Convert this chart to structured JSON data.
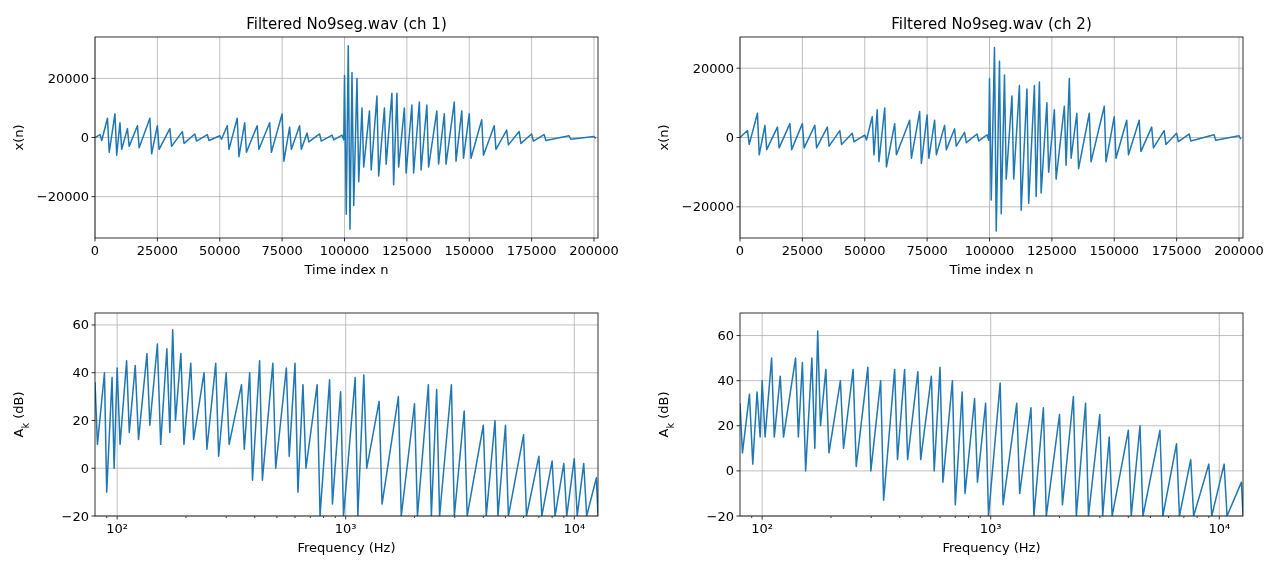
{
  "chart_data": [
    {
      "type": "line",
      "title": "Filtered No9seg.wav (ch 1)",
      "xlabel": "Time index n",
      "ylabel": "x(n)",
      "xlim": [
        0,
        201600
      ],
      "ylim": [
        -34000,
        34000
      ],
      "xticks": [
        0,
        25000,
        50000,
        75000,
        100000,
        125000,
        150000,
        175000,
        200000
      ],
      "yticks": [
        -20000,
        0,
        20000
      ],
      "grid": true,
      "series": [
        {
          "color": "#1f77b4",
          "x": [
            0,
            2000,
            2700,
            5000,
            5700,
            8000,
            8700,
            10000,
            10700,
            13000,
            13700,
            17000,
            17700,
            22000,
            22700,
            25000,
            25700,
            30000,
            30700,
            35000,
            35700,
            40000,
            40700,
            45000,
            45700,
            50000,
            50700,
            53000,
            53700,
            57000,
            57700,
            60000,
            60700,
            65000,
            65700,
            70000,
            70700,
            75000,
            75700,
            78000,
            78700,
            82000,
            82700,
            85000,
            85700,
            90000,
            90700,
            95000,
            95700,
            99000,
            99700,
            100000,
            100700,
            101500,
            102200,
            103000,
            103700,
            105000,
            105700,
            107000,
            107700,
            110000,
            110700,
            113000,
            113700,
            116000,
            116700,
            119000,
            119700,
            121000,
            121700,
            124000,
            124700,
            127000,
            127700,
            130000,
            130700,
            133000,
            133700,
            137000,
            137700,
            140000,
            140700,
            144000,
            144700,
            147000,
            147700,
            150000,
            150700,
            155000,
            155700,
            160000,
            160700,
            165000,
            165700,
            170000,
            170700,
            175000,
            175700,
            180000,
            180700,
            190000,
            190700,
            200000,
            200700
          ],
          "values": [
            0,
            1000,
            -1000,
            6500,
            -5000,
            8000,
            -6000,
            5000,
            -4000,
            3000,
            -3000,
            4000,
            -3500,
            6500,
            -5500,
            4000,
            -4000,
            3000,
            -3000,
            2000,
            -2000,
            1200,
            -1200,
            1000,
            -1000,
            600,
            -600,
            4000,
            -4000,
            6500,
            -6500,
            5000,
            -5000,
            4000,
            -4000,
            5000,
            -5000,
            8000,
            -8000,
            3500,
            -4000,
            4000,
            -4000,
            1500,
            -1500,
            1200,
            -1200,
            800,
            -800,
            800,
            -800,
            21000,
            -26000,
            31000,
            -31000,
            22000,
            -23000,
            20000,
            -15000,
            10000,
            -10000,
            9000,
            -11000,
            14000,
            -13000,
            10000,
            -9000,
            15000,
            -16000,
            15000,
            -10000,
            10000,
            -12000,
            11000,
            -12000,
            12000,
            -11000,
            11000,
            -10000,
            9000,
            -9000,
            8000,
            -9000,
            12000,
            -8000,
            9000,
            -7000,
            8000,
            -7000,
            6000,
            -6000,
            4000,
            -4000,
            2500,
            -2500,
            2000,
            -2000,
            1200,
            -1200,
            1000,
            -1000,
            600,
            -600,
            300,
            -300
          ]
        }
      ]
    },
    {
      "type": "line",
      "title": "Filtered No9seg.wav (ch 2)",
      "xlabel": "Time index n",
      "ylabel": "x(n)",
      "xlim": [
        0,
        201600
      ],
      "ylim": [
        -29000,
        29000
      ],
      "xticks": [
        0,
        25000,
        50000,
        75000,
        100000,
        125000,
        150000,
        175000,
        200000
      ],
      "yticks": [
        -20000,
        0,
        20000
      ],
      "grid": true,
      "series": [
        {
          "color": "#1f77b4",
          "x": [
            0,
            3000,
            3700,
            7000,
            7700,
            10000,
            10700,
            15000,
            15700,
            20000,
            20700,
            25000,
            25700,
            30000,
            30700,
            35000,
            35700,
            40000,
            40700,
            45000,
            45700,
            50000,
            50700,
            53000,
            53700,
            55000,
            55700,
            58000,
            58700,
            62000,
            62700,
            68000,
            68700,
            72000,
            72700,
            75000,
            75700,
            78000,
            78700,
            82000,
            82700,
            86000,
            86700,
            90000,
            90700,
            95000,
            95700,
            99000,
            99700,
            100000,
            100700,
            102000,
            102700,
            104000,
            104700,
            106000,
            106700,
            109000,
            109700,
            112000,
            112700,
            115000,
            115700,
            118000,
            118700,
            120000,
            120700,
            123000,
            123700,
            126000,
            126700,
            130000,
            130700,
            132000,
            132700,
            135000,
            135700,
            140000,
            140700,
            146000,
            146700,
            150000,
            150700,
            155000,
            155700,
            160000,
            160700,
            165000,
            165700,
            170000,
            170700,
            175000,
            175700,
            180000,
            180700,
            190000,
            190700,
            200000,
            200700
          ],
          "values": [
            0,
            2000,
            -2000,
            7000,
            -5000,
            3500,
            -3500,
            3000,
            -3000,
            4000,
            -3500,
            4000,
            -3000,
            3500,
            -3000,
            3000,
            -2500,
            2000,
            -2000,
            1200,
            -1200,
            700,
            -700,
            6000,
            -5000,
            8000,
            -7000,
            8500,
            -8500,
            4000,
            -5000,
            5000,
            -6000,
            7500,
            -7500,
            6500,
            -6000,
            5000,
            -5000,
            3500,
            -3500,
            2500,
            -2500,
            1500,
            -1500,
            1000,
            -1000,
            800,
            -800,
            17000,
            -18000,
            26000,
            -27000,
            22000,
            -22000,
            18000,
            -12000,
            12000,
            -12000,
            15000,
            -21000,
            14000,
            -19000,
            15000,
            -17000,
            16000,
            -16000,
            10000,
            -10000,
            8000,
            -12000,
            9000,
            -8000,
            17000,
            -6000,
            7000,
            -9000,
            7000,
            -7000,
            9000,
            -7000,
            6000,
            -6000,
            5000,
            -5000,
            5000,
            -4000,
            3000,
            -3000,
            2000,
            -2000,
            1200,
            -1200,
            1000,
            -1000,
            800,
            -800,
            500,
            -500
          ]
        }
      ]
    },
    {
      "type": "line",
      "xlabel": "Frequency (Hz)",
      "ylabel": "A$_{k}$ (dB)",
      "log": "x",
      "xlim": [
        80,
        12700
      ],
      "ylim": [
        -20,
        65
      ],
      "xticks": [
        {
          "value": 90,
          "label": null
        },
        {
          "value": 100,
          "label": "10²"
        },
        {
          "value": 200,
          "label": null
        },
        {
          "value": 300,
          "label": null
        },
        {
          "value": 400,
          "label": null
        },
        {
          "value": 500,
          "label": null
        },
        {
          "value": 600,
          "label": null
        },
        {
          "value": 700,
          "label": null
        },
        {
          "value": 800,
          "label": null
        },
        {
          "value": 900,
          "label": null
        },
        {
          "value": 1000,
          "label": "10³"
        },
        {
          "value": 2000,
          "label": null
        },
        {
          "value": 3000,
          "label": null
        },
        {
          "value": 4000,
          "label": null
        },
        {
          "value": 5000,
          "label": null
        },
        {
          "value": 6000,
          "label": null
        },
        {
          "value": 7000,
          "label": null
        },
        {
          "value": 8000,
          "label": null
        },
        {
          "value": 9000,
          "label": null
        },
        {
          "value": 10000,
          "label": "10⁴"
        }
      ],
      "yticks": [
        -20,
        0,
        20,
        40,
        60
      ],
      "grid": true,
      "series": [
        {
          "color": "#1f77b4",
          "x": [
            80,
            82,
            88,
            90,
            95,
            97,
            100,
            103,
            110,
            113,
            120,
            124,
            135,
            139,
            150,
            155,
            165,
            170,
            175,
            180,
            190,
            196,
            210,
            216,
            240,
            247,
            270,
            278,
            300,
            309,
            350,
            360,
            380,
            391,
            420,
            432,
            480,
            494,
            550,
            566,
            600,
            618,
            650,
            670,
            750,
            772,
            850,
            875,
            950,
            978,
            1100,
            1130,
            1200,
            1236,
            1400,
            1442,
            1700,
            1750,
            2000,
            2060,
            2300,
            2370,
            2500,
            2575,
            2900,
            2987,
            3300,
            3400,
            4000,
            4120,
            4500,
            4635,
            5000,
            5150,
            6000,
            6180,
            7000,
            7210,
            8000,
            8240,
            9000,
            9270,
            10000,
            10300,
            11000,
            11330,
            12500,
            12700
          ],
          "values": [
            36,
            10,
            40,
            -10,
            38,
            0,
            42,
            10,
            45,
            15,
            43,
            12,
            48,
            18,
            52,
            10,
            50,
            15,
            58,
            20,
            48,
            10,
            44,
            12,
            40,
            8,
            44,
            5,
            40,
            10,
            35,
            8,
            40,
            -5,
            45,
            -5,
            44,
            0,
            42,
            5,
            44,
            -10,
            35,
            0,
            35,
            -20,
            37,
            -15,
            32,
            -20,
            38,
            -20,
            39,
            0,
            28,
            -15,
            30,
            -20,
            27,
            -20,
            35,
            -20,
            33,
            -20,
            35,
            -20,
            24,
            -20,
            18,
            -20,
            20,
            -20,
            18,
            -20,
            14,
            -20,
            5,
            -20,
            3,
            -20,
            2,
            -20,
            4,
            -20,
            2,
            -20,
            -4,
            -20
          ]
        }
      ]
    },
    {
      "type": "line",
      "xlabel": "Frequency (Hz)",
      "ylabel": "A$_{k}$ (dB)",
      "log": "x",
      "xlim": [
        80,
        12700
      ],
      "ylim": [
        -20,
        70
      ],
      "xticks": [
        {
          "value": 90,
          "label": null
        },
        {
          "value": 100,
          "label": "10²"
        },
        {
          "value": 200,
          "label": null
        },
        {
          "value": 300,
          "label": null
        },
        {
          "value": 400,
          "label": null
        },
        {
          "value": 500,
          "label": null
        },
        {
          "value": 600,
          "label": null
        },
        {
          "value": 700,
          "label": null
        },
        {
          "value": 800,
          "label": null
        },
        {
          "value": 900,
          "label": null
        },
        {
          "value": 1000,
          "label": "10³"
        },
        {
          "value": 2000,
          "label": null
        },
        {
          "value": 3000,
          "label": null
        },
        {
          "value": 4000,
          "label": null
        },
        {
          "value": 5000,
          "label": null
        },
        {
          "value": 6000,
          "label": null
        },
        {
          "value": 7000,
          "label": null
        },
        {
          "value": 8000,
          "label": null
        },
        {
          "value": 9000,
          "label": null
        },
        {
          "value": 10000,
          "label": "10⁴"
        }
      ],
      "yticks": [
        -20,
        0,
        20,
        40,
        60
      ],
      "grid": true,
      "series": [
        {
          "color": "#1f77b4",
          "x": [
            80,
            82,
            88,
            91,
            95,
            98,
            100,
            103,
            110,
            113,
            120,
            124,
            140,
            144,
            150,
            155,
            165,
            170,
            175,
            180,
            190,
            196,
            220,
            227,
            250,
            258,
            290,
            299,
            330,
            340,
            380,
            391,
            420,
            433,
            480,
            494,
            550,
            566,
            600,
            618,
            680,
            700,
            750,
            772,
            850,
            875,
            950,
            978,
            1100,
            1133,
            1300,
            1339,
            1500,
            1545,
            1700,
            1751,
            2000,
            2060,
            2300,
            2369,
            2600,
            2678,
            3000,
            3090,
            3300,
            3399,
            4000,
            4120,
            4500,
            4635,
            5500,
            5665,
            6500,
            6695,
            7500,
            7725,
            9000,
            9270,
            10500,
            10815,
            12500,
            12700
          ],
          "values": [
            30,
            8,
            34,
            3,
            35,
            15,
            40,
            15,
            50,
            15,
            42,
            15,
            50,
            15,
            48,
            0,
            50,
            10,
            62,
            20,
            45,
            8,
            40,
            10,
            45,
            2,
            46,
            0,
            40,
            -13,
            45,
            5,
            45,
            5,
            44,
            5,
            42,
            0,
            46,
            -5,
            40,
            -15,
            35,
            -10,
            32,
            -5,
            30,
            -20,
            39,
            -15,
            30,
            -10,
            28,
            -20,
            28,
            -20,
            25,
            -15,
            33,
            -20,
            30,
            -20,
            25,
            -20,
            15,
            -20,
            18,
            -20,
            20,
            -20,
            18,
            -20,
            12,
            -20,
            5,
            -20,
            3,
            -20,
            3,
            -20,
            -5,
            -20
          ]
        }
      ]
    }
  ]
}
